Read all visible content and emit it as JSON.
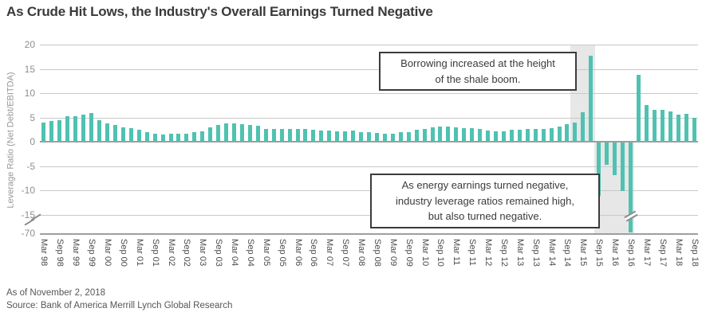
{
  "header": {
    "title": "As Crude Hit Lows, the Industry's Overall Earnings Turned Negative"
  },
  "annotations": {
    "box1": {
      "lines": [
        "Borrowing increased at the height",
        "of the shale boom."
      ]
    },
    "box2": {
      "lines": [
        "As energy earnings turned negative,",
        "industry leverage ratios remained high,",
        "but also turned negative."
      ]
    }
  },
  "footer": {
    "as_of": "As of November 2, 2018",
    "source": "Source: Bank of America Merrill Lynch Global Research"
  },
  "colors": {
    "bar": "#4fc2b1",
    "highlight_band": "#e7e7e7",
    "gridline": "#c9c9c9",
    "axis_line": "#9e9e9e",
    "title_text": "#3a3a3a",
    "annotation_border": "#3b3b3b"
  },
  "chart_data": {
    "type": "bar",
    "title": "As Crude Hit Lows, the Industry's Overall Earnings Turned Negative",
    "xlabel": "",
    "ylabel": "Leverage Ratio (Net Debt/EBITDA)",
    "grid": true,
    "y_ticks": [
      20,
      15,
      10,
      5,
      0,
      -5,
      -10,
      -15
    ],
    "y_axis_break_label": -70,
    "ylim_linear": [
      -15,
      20
    ],
    "x_tick_every_n_bars": 2,
    "x_tick_labels": [
      "Mar 98",
      "Sep 98",
      "Mar 99",
      "Sep 99",
      "Mar 00",
      "Sep 00",
      "Mar 01",
      "Sep 01",
      "Mar 02",
      "Sep 02",
      "Mar 03",
      "Sep 03",
      "Mar 04",
      "Sep 04",
      "Mar 05",
      "Sep 05",
      "Mar 06",
      "Sep 06",
      "Mar 07",
      "Sep 07",
      "Mar 08",
      "Sep 08",
      "Mar 09",
      "Sep 09",
      "Mar 10",
      "Sep 10",
      "Mar 11",
      "Sep 11",
      "Mar 12",
      "Sep 12",
      "Mar 13",
      "Sep 13",
      "Mar 14",
      "Sep 14",
      "Mar 15",
      "Sep 15",
      "Mar 16",
      "Sep 16",
      "Mar 17",
      "Sep 17",
      "Mar 18",
      "Sep 18"
    ],
    "values": [
      4.0,
      4.2,
      4.4,
      5.3,
      5.2,
      5.6,
      5.9,
      4.5,
      3.8,
      3.4,
      3.0,
      2.8,
      2.4,
      1.9,
      1.6,
      1.5,
      1.7,
      1.7,
      1.6,
      1.9,
      2.2,
      2.9,
      3.4,
      3.7,
      3.8,
      3.6,
      3.4,
      3.3,
      2.7,
      2.7,
      2.6,
      2.6,
      2.6,
      2.7,
      2.4,
      2.3,
      2.3,
      2.2,
      2.2,
      2.3,
      2.0,
      1.9,
      1.8,
      1.7,
      1.7,
      1.9,
      2.0,
      2.4,
      2.7,
      2.9,
      3.1,
      3.1,
      2.9,
      2.8,
      2.8,
      2.7,
      2.3,
      2.2,
      2.2,
      2.4,
      2.4,
      2.7,
      2.6,
      2.6,
      2.8,
      3.1,
      3.6,
      3.9,
      6.0,
      17.7,
      -11.0,
      -4.6,
      -6.7,
      -10.0,
      -67.0,
      13.8,
      7.6,
      6.6,
      6.5,
      6.3,
      5.5,
      5.7,
      4.9
    ],
    "clamped_bar": {
      "index": 74,
      "note": "bar drawn through an axis break, extends to about -70"
    },
    "highlight_regions": [
      {
        "label": "shale boom borrowing peak",
        "start_index": 67,
        "end_index": 69,
        "side": "above-zero"
      },
      {
        "label": "negative leverage period",
        "start_index": 70,
        "end_index": 74,
        "side": "below-zero"
      }
    ],
    "legend": null
  }
}
